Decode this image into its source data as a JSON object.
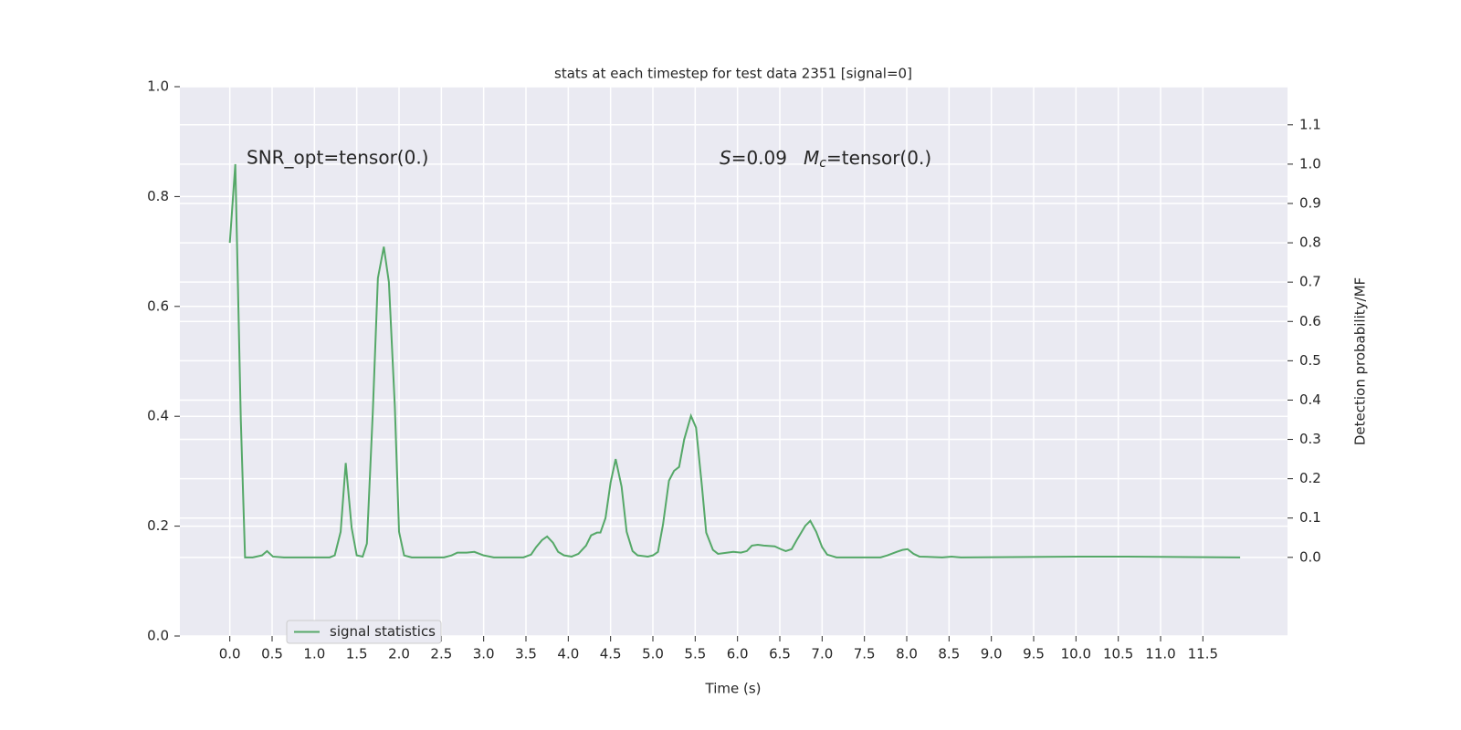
{
  "chart_data": {
    "type": "line",
    "title": "stats at each timestep for test data 2351 [signal=0]",
    "x_label": "Time (s)",
    "y2_label": "Detection probability/MF",
    "annotations": [
      "SNR_opt=tensor(0.)",
      "S",
      "=0.09",
      "M",
      "c",
      "=tensor(0.)"
    ],
    "xlim": [
      -0.59,
      12.5
    ],
    "xticks": [
      {
        "value": 0,
        "label": "0.0"
      },
      0.5,
      {
        "value": 1,
        "label": "1.0"
      },
      1.5,
      {
        "value": 2,
        "label": "2.0"
      },
      2.5,
      {
        "value": 3,
        "label": "3.0"
      },
      3.5,
      {
        "value": 4,
        "label": "4.0"
      },
      4.5,
      {
        "value": 5,
        "label": "5.0"
      },
      5.5,
      {
        "value": 6,
        "label": "6.0"
      },
      6.5,
      {
        "value": 7,
        "label": "7.0"
      },
      7.5,
      {
        "value": 8,
        "label": "8.0"
      },
      8.5,
      {
        "value": 9,
        "label": "9.0"
      },
      9.5,
      {
        "value": 10,
        "label": "10.0"
      },
      10.5,
      {
        "value": 11,
        "label": "11.0"
      },
      11.5
    ],
    "ylim": [
      0,
      1
    ],
    "yticks": [
      {
        "value": 0,
        "label": "0.0"
      },
      0.2,
      0.4,
      0.6,
      0.8,
      {
        "value": 1,
        "label": "1.0"
      }
    ],
    "y2lim": [
      -0.2,
      1.197
    ],
    "y2ticks": [
      {
        "value": 0,
        "label": "0.0"
      },
      0.1,
      0.2,
      0.3,
      0.4,
      0.5,
      0.6,
      0.7,
      0.8,
      0.9,
      {
        "value": 1,
        "label": "1.0"
      },
      1.1
    ],
    "grid": true,
    "legend": "lower left",
    "x": [
      0,
      0.065,
      0.13,
      0.18,
      0.27,
      0.38,
      0.44,
      0.51,
      0.64,
      1.18,
      1.24,
      1.31,
      1.37,
      1.44,
      1.5,
      1.57,
      1.62,
      1.69,
      1.75,
      1.82,
      1.88,
      1.95,
      2.0,
      2.06,
      2.15,
      2.53,
      2.62,
      2.69,
      2.8,
      2.89,
      3.0,
      3.12,
      3.47,
      3.56,
      3.62,
      3.69,
      3.75,
      3.82,
      3.88,
      3.95,
      4.04,
      4.12,
      4.21,
      4.27,
      4.34,
      4.38,
      4.44,
      4.5,
      4.56,
      4.63,
      4.69,
      4.76,
      4.82,
      4.94,
      5.0,
      5.06,
      5.12,
      5.19,
      5.25,
      5.31,
      5.37,
      5.45,
      5.51,
      5.58,
      5.63,
      5.71,
      5.77,
      5.88,
      5.95,
      6.04,
      6.11,
      6.17,
      6.24,
      6.31,
      6.44,
      6.51,
      6.57,
      6.64,
      6.7,
      6.8,
      6.86,
      6.93,
      7.0,
      7.06,
      7.17,
      7.69,
      7.77,
      7.88,
      7.95,
      8.01,
      8.08,
      8.15,
      8.42,
      8.53,
      8.64,
      10.05,
      10.6,
      11.94
    ],
    "series": [
      {
        "name": "signal statistics",
        "color": "#55a868",
        "axis": "y2",
        "values": [
          0.8,
          1.0,
          0.35,
          0.0,
          0.0,
          0.005,
          0.016,
          0.002,
          0.0,
          0.0,
          0.005,
          0.065,
          0.24,
          0.075,
          0.005,
          0.002,
          0.035,
          0.37,
          0.71,
          0.79,
          0.7,
          0.385,
          0.065,
          0.005,
          0.0,
          0.0,
          0.005,
          0.012,
          0.012,
          0.014,
          0.005,
          0.0,
          0.0,
          0.007,
          0.026,
          0.044,
          0.053,
          0.037,
          0.014,
          0.005,
          0.002,
          0.009,
          0.03,
          0.056,
          0.063,
          0.063,
          0.1,
          0.19,
          0.25,
          0.18,
          0.065,
          0.016,
          0.005,
          0.002,
          0.005,
          0.014,
          0.084,
          0.195,
          0.22,
          0.23,
          0.3,
          0.36,
          0.33,
          0.18,
          0.063,
          0.019,
          0.009,
          0.012,
          0.014,
          0.012,
          0.016,
          0.03,
          0.032,
          0.03,
          0.028,
          0.021,
          0.016,
          0.021,
          0.044,
          0.08,
          0.093,
          0.065,
          0.026,
          0.007,
          0.0,
          0.0,
          0.005,
          0.014,
          0.019,
          0.021,
          0.009,
          0.002,
          0.0,
          0.002,
          0.0,
          0.002,
          0.002,
          0.0
        ]
      }
    ]
  }
}
